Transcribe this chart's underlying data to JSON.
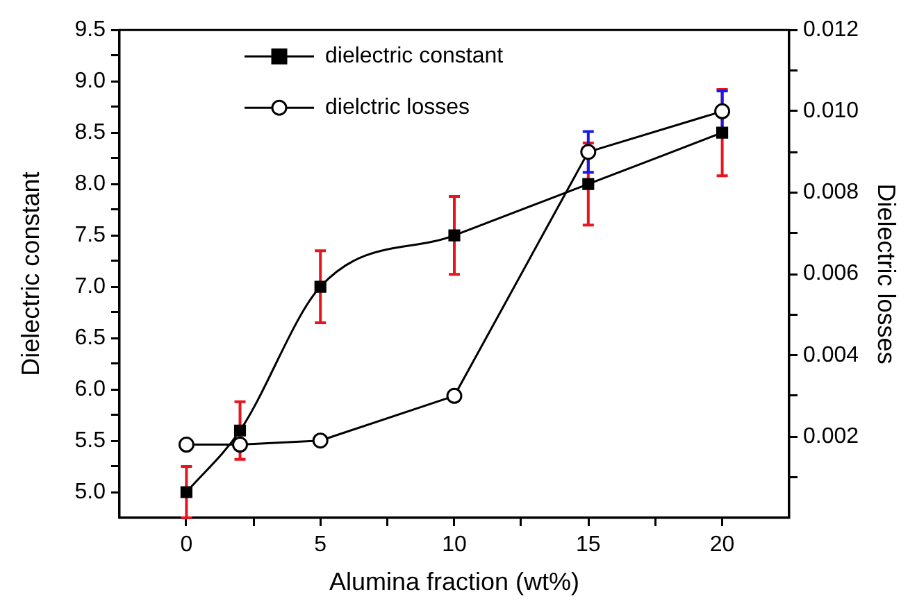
{
  "chart_data": {
    "type": "line",
    "xlabel": "Alumina fraction (wt%)",
    "ylabel": "Dielectric constant",
    "y2label": "Dielectric losses",
    "x": [
      0,
      2,
      5,
      10,
      15,
      20
    ],
    "series": [
      {
        "name": "dielectric constant",
        "color": "#000000",
        "marker": "square",
        "values": [
          5.0,
          5.6,
          7.0,
          7.5,
          8.0,
          8.5
        ],
        "errors": [
          0.25,
          0.28,
          0.35,
          0.38,
          0.4,
          0.42
        ]
      },
      {
        "name": "dielctric losses",
        "color": "#000000",
        "marker": "circle",
        "axis": "y2",
        "values": [
          0.0018,
          0.0018,
          0.0019,
          0.003,
          0.009,
          0.01
        ],
        "errors": [
          null,
          null,
          null,
          null,
          0.0005,
          0.0005
        ]
      }
    ],
    "xlim": [
      -2.5,
      22.5
    ],
    "xticks": [
      0,
      {
        "value": 2.5,
        "label": null
      },
      5,
      {
        "value": 7.5,
        "label": null
      },
      10,
      {
        "value": 12.5,
        "label": null
      },
      15,
      {
        "value": 17.5,
        "label": null
      },
      20
    ],
    "ylim": [
      4.75,
      9.5
    ],
    "yticks": [
      {
        "value": 5,
        "label": "5.0"
      },
      {
        "value": 5.25,
        "label": null
      },
      5.5,
      {
        "value": 5.75,
        "label": null
      },
      {
        "value": 6,
        "label": "6.0"
      },
      {
        "value": 6.25,
        "label": null
      },
      6.5,
      {
        "value": 6.75,
        "label": null
      },
      {
        "value": 7,
        "label": "7.0"
      },
      {
        "value": 7.25,
        "label": null
      },
      7.5,
      {
        "value": 7.75,
        "label": null
      },
      {
        "value": 8,
        "label": "8.0"
      },
      {
        "value": 8.25,
        "label": null
      },
      8.5,
      {
        "value": 8.75,
        "label": null
      },
      {
        "value": 9,
        "label": "9.0"
      },
      {
        "value": 9.25,
        "label": null
      },
      9.5
    ],
    "y2lim": [
      0,
      0.012
    ],
    "y2ticks": [
      {
        "value": 0.001,
        "label": null
      },
      0.002,
      {
        "value": 0.003,
        "label": null
      },
      0.004,
      {
        "value": 0.005,
        "label": null
      },
      0.006,
      {
        "value": 0.007,
        "label": null
      },
      0.008,
      {
        "value": 0.009,
        "label": null
      },
      {
        "value": 0.01,
        "label": "0.010"
      },
      {
        "value": 0.011,
        "label": null
      },
      0.012
    ],
    "grid": false,
    "legend": "top left"
  }
}
